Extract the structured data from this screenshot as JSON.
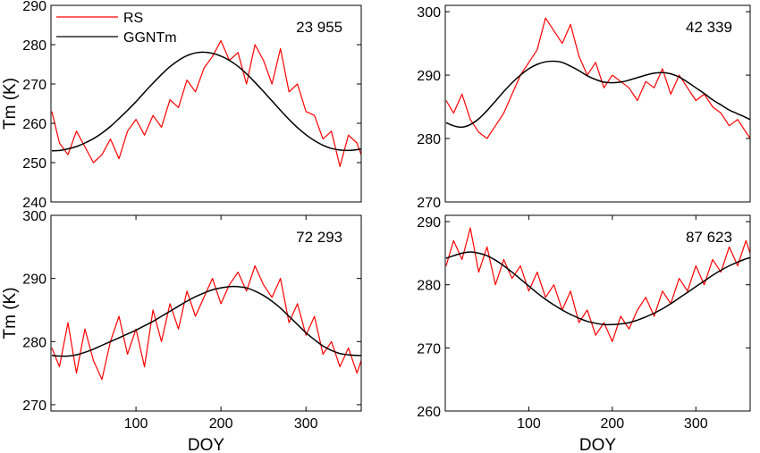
{
  "chart_data": [
    {
      "type": "line",
      "station_label": "23 955",
      "x": [
        1,
        10,
        20,
        30,
        40,
        50,
        60,
        70,
        80,
        90,
        100,
        110,
        120,
        130,
        140,
        150,
        160,
        170,
        180,
        190,
        200,
        210,
        220,
        230,
        240,
        250,
        260,
        270,
        280,
        290,
        300,
        310,
        320,
        330,
        340,
        350,
        360,
        365
      ],
      "series": [
        {
          "name": "RS",
          "color": "#ff0000",
          "values": [
            263,
            255,
            252,
            258,
            254,
            250,
            252,
            256,
            251,
            258,
            261,
            257,
            262,
            259,
            266,
            264,
            271,
            268,
            274,
            277,
            281,
            276,
            278,
            270,
            280,
            276,
            270,
            279,
            268,
            270,
            263,
            262,
            256,
            258,
            249,
            257,
            255,
            252
          ]
        },
        {
          "name": "GGNTm",
          "color": "#000000",
          "values": [
            253.0,
            253.1,
            253.5,
            254.1,
            255.0,
            256.1,
            257.5,
            259.2,
            261.2,
            263.3,
            265.5,
            267.9,
            270.2,
            272.4,
            274.4,
            276.0,
            277.2,
            277.9,
            278.1,
            277.8,
            277.1,
            276.0,
            274.5,
            272.6,
            270.4,
            268.1,
            265.7,
            263.3,
            261.0,
            258.9,
            257.1,
            255.6,
            254.4,
            253.6,
            253.2,
            253.1,
            253.3,
            253.5
          ]
        }
      ],
      "ylabel": "Tm (K)",
      "xlabel": "",
      "ylim": [
        240,
        290
      ],
      "yticks": [
        240,
        250,
        260,
        270,
        280,
        290
      ],
      "xlim": [
        0,
        365
      ],
      "xticks": [],
      "legend": "top-left"
    },
    {
      "type": "line",
      "station_label": "42 339",
      "x": [
        1,
        10,
        20,
        30,
        40,
        50,
        60,
        70,
        80,
        90,
        100,
        110,
        120,
        130,
        140,
        150,
        160,
        170,
        180,
        190,
        200,
        210,
        220,
        230,
        240,
        250,
        260,
        270,
        280,
        290,
        300,
        310,
        320,
        330,
        340,
        350,
        360,
        365
      ],
      "series": [
        {
          "name": "RS",
          "color": "#ff0000",
          "values": [
            286,
            284,
            287,
            283,
            281,
            280,
            282,
            284,
            287,
            290,
            292,
            294,
            299,
            297,
            295,
            298,
            293,
            290,
            292,
            288,
            290,
            289,
            288,
            286,
            289,
            288,
            291,
            287,
            290,
            288,
            286,
            287,
            285,
            284,
            282,
            283,
            281,
            280
          ]
        },
        {
          "name": "GGNTm",
          "color": "#000000",
          "values": [
            282.5,
            282.0,
            281.8,
            282.2,
            283.1,
            284.4,
            285.9,
            287.4,
            288.8,
            290.0,
            291.0,
            291.7,
            292.1,
            292.2,
            292.0,
            291.4,
            290.7,
            289.9,
            289.3,
            288.9,
            288.8,
            288.9,
            289.2,
            289.6,
            290.0,
            290.3,
            290.4,
            290.2,
            289.7,
            288.9,
            288.0,
            287.1,
            286.1,
            285.3,
            284.5,
            283.9,
            283.3,
            283.0
          ]
        }
      ],
      "ylabel": "",
      "xlabel": "",
      "ylim": [
        270,
        301
      ],
      "yticks": [
        270,
        280,
        290,
        300
      ],
      "xlim": [
        0,
        365
      ],
      "xticks": []
    },
    {
      "type": "line",
      "station_label": "72 293",
      "x": [
        1,
        10,
        20,
        30,
        40,
        50,
        60,
        70,
        80,
        90,
        100,
        110,
        120,
        130,
        140,
        150,
        160,
        170,
        180,
        190,
        200,
        210,
        220,
        230,
        240,
        250,
        260,
        270,
        280,
        290,
        300,
        310,
        320,
        330,
        340,
        350,
        360,
        365
      ],
      "series": [
        {
          "name": "RS",
          "color": "#ff0000",
          "values": [
            279,
            276,
            283,
            275,
            282,
            277,
            274,
            280,
            284,
            278,
            282,
            276,
            285,
            280,
            286,
            282,
            288,
            284,
            287,
            290,
            286,
            289,
            291,
            288,
            292,
            289,
            287,
            290,
            283,
            286,
            281,
            284,
            278,
            280,
            276,
            279,
            275,
            277
          ]
        },
        {
          "name": "GGNTm",
          "color": "#000000",
          "values": [
            277.8,
            277.7,
            277.7,
            277.9,
            278.3,
            278.8,
            279.4,
            280.0,
            280.6,
            281.2,
            281.8,
            282.5,
            283.2,
            284.0,
            284.8,
            285.6,
            286.4,
            287.1,
            287.7,
            288.2,
            288.5,
            288.7,
            288.7,
            288.5,
            288.0,
            287.3,
            286.4,
            285.3,
            284.0,
            282.7,
            281.4,
            280.3,
            279.3,
            278.6,
            278.1,
            277.9,
            277.8,
            277.8
          ]
        }
      ],
      "ylabel": "Tm (K)",
      "xlabel": "DOY",
      "ylim": [
        269,
        300
      ],
      "yticks": [
        270,
        280,
        290,
        300
      ],
      "xlim": [
        0,
        365
      ],
      "xticks": [
        100,
        200,
        300
      ]
    },
    {
      "type": "line",
      "station_label": "87 623",
      "x": [
        1,
        10,
        20,
        30,
        40,
        50,
        60,
        70,
        80,
        90,
        100,
        110,
        120,
        130,
        140,
        150,
        160,
        170,
        180,
        190,
        200,
        210,
        220,
        230,
        240,
        250,
        260,
        270,
        280,
        290,
        300,
        310,
        320,
        330,
        340,
        350,
        360,
        365
      ],
      "series": [
        {
          "name": "RS",
          "color": "#ff0000",
          "values": [
            283,
            287,
            284,
            289,
            282,
            286,
            280,
            284,
            281,
            283,
            279,
            282,
            278,
            280,
            276,
            279,
            274,
            276,
            272,
            274,
            271,
            275,
            273,
            276,
            278,
            275,
            279,
            277,
            281,
            279,
            283,
            280,
            284,
            282,
            286,
            283,
            287,
            285
          ]
        },
        {
          "name": "GGNTm",
          "color": "#000000",
          "values": [
            284.2,
            284.6,
            285.0,
            285.2,
            285.0,
            284.6,
            283.9,
            283.0,
            282.0,
            280.9,
            279.8,
            278.7,
            277.7,
            276.8,
            276.0,
            275.3,
            274.7,
            274.2,
            273.9,
            273.7,
            273.7,
            273.8,
            274.0,
            274.4,
            274.9,
            275.5,
            276.2,
            277.0,
            277.9,
            278.8,
            279.7,
            280.6,
            281.5,
            282.3,
            283.0,
            283.6,
            284.1,
            284.3
          ]
        }
      ],
      "ylabel": "",
      "xlabel": "DOY",
      "ylim": [
        260,
        291
      ],
      "yticks": [
        260,
        270,
        280,
        290
      ],
      "xlim": [
        0,
        365
      ],
      "xticks": [
        100,
        200,
        300
      ]
    }
  ]
}
